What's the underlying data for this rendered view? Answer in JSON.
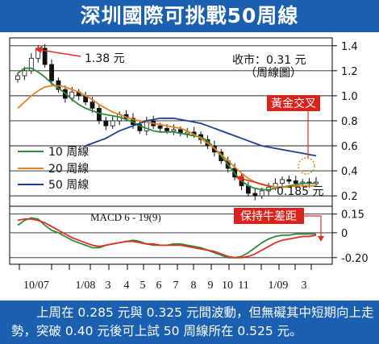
{
  "title": "深圳國際可挑戰50周線",
  "caption": "上周在 0.285 元與 0.325 元間波動，但無礙其中短期向上走勢，突破 0.40 元後可上試 50 周線所在 0.525 元。",
  "chart_data": [
    {
      "type": "line",
      "subtype": "candlestick-with-moving-averages",
      "closing_note": "收市：0.31 元",
      "chart_note": "（周線圖）",
      "y_ticks": [
        0.2,
        0.4,
        0.6,
        0.8,
        1.0,
        1.2,
        1.4
      ],
      "y_tick_labels": [
        "0.2",
        "0.4",
        "0.6",
        "0.8",
        "1.0",
        "1.2",
        "1.4"
      ],
      "ylim": [
        0.13,
        1.45
      ],
      "x_ticks": [
        "10/07",
        "1/08",
        "3",
        "4",
        "5",
        "6",
        "7",
        "8",
        "9",
        "10",
        "11",
        "1/09",
        "3"
      ],
      "annotations": [
        {
          "text": "1.38 元",
          "value": 1.38
        },
        {
          "text": "0.185 元",
          "value": 0.185
        },
        {
          "text": "黃金交叉"
        }
      ],
      "legend": [
        "10 周線",
        "20 周線",
        "50 周線"
      ],
      "legend_position": "lower-left",
      "series": [
        {
          "name": "10 周線",
          "color": "#2e8b3a",
          "values": [
            1.18,
            1.22,
            1.22,
            1.19,
            1.15,
            1.1,
            1.06,
            1.02,
            0.97,
            0.93,
            0.9,
            0.88,
            0.86,
            0.85,
            0.84,
            0.83,
            0.81,
            0.79,
            0.76,
            0.74,
            0.72,
            0.71,
            0.71,
            0.71,
            0.7,
            0.69,
            0.68,
            0.67,
            0.64,
            0.58,
            0.52,
            0.45,
            0.38,
            0.32,
            0.28,
            0.26,
            0.25,
            0.25,
            0.26,
            0.27,
            0.28,
            0.29,
            0.3,
            0.3,
            0.3
          ]
        },
        {
          "name": "20 周線",
          "color": "#e8821e",
          "values": [
            0.9,
            0.95,
            1.0,
            1.04,
            1.07,
            1.08,
            1.08,
            1.07,
            1.05,
            1.03,
            1.0,
            0.97,
            0.93,
            0.9,
            0.87,
            0.85,
            0.83,
            0.81,
            0.8,
            0.79,
            0.78,
            0.77,
            0.76,
            0.75,
            0.74,
            0.72,
            0.69,
            0.66,
            0.62,
            0.58,
            0.53,
            0.48,
            0.43,
            0.38,
            0.34,
            0.31,
            0.29,
            0.28,
            0.27,
            0.27,
            0.27,
            0.28,
            0.28,
            0.28,
            0.28
          ]
        },
        {
          "name": "50 周線",
          "color": "#1f3f8f",
          "values": [
            null,
            null,
            null,
            null,
            null,
            null,
            null,
            null,
            null,
            null,
            0.6,
            0.62,
            0.64,
            0.66,
            0.69,
            0.72,
            0.74,
            0.76,
            0.78,
            0.8,
            0.81,
            0.82,
            0.82,
            0.82,
            0.81,
            0.8,
            0.79,
            0.78,
            0.76,
            0.74,
            0.72,
            0.7,
            0.68,
            0.66,
            0.64,
            0.62,
            0.6,
            0.59,
            0.58,
            0.57,
            0.56,
            0.55,
            0.54,
            0.53,
            0.52
          ]
        },
        {
          "name": "weekly-close",
          "color": "#111111",
          "values": [
            1.16,
            1.2,
            1.3,
            1.38,
            1.25,
            1.12,
            1.05,
            0.98,
            1.03,
            1.0,
            0.95,
            0.9,
            0.8,
            0.76,
            0.8,
            0.85,
            0.82,
            0.77,
            0.72,
            0.8,
            0.76,
            0.74,
            0.72,
            0.73,
            0.7,
            0.71,
            0.69,
            0.65,
            0.6,
            0.55,
            0.48,
            0.42,
            0.35,
            0.28,
            0.22,
            0.2,
            0.24,
            0.27,
            0.3,
            0.33,
            0.32,
            0.3,
            0.31,
            0.3,
            0.31
          ]
        }
      ]
    },
    {
      "type": "line",
      "title": "MACD 6 - 19(9)",
      "y_ticks": [
        0.15,
        0,
        -0.2
      ],
      "y_tick_labels": [
        "0.15",
        "0",
        "-0.20"
      ],
      "ylim": [
        -0.24,
        0.2
      ],
      "annotations": [
        {
          "text": "保持牛差距"
        }
      ],
      "series": [
        {
          "name": "MACD",
          "color": "#2e8b3a",
          "values": [
            0.06,
            0.1,
            0.12,
            0.11,
            0.06,
            0.02,
            0.0,
            -0.03,
            -0.06,
            -0.08,
            -0.1,
            -0.12,
            -0.12,
            -0.1,
            -0.09,
            -0.08,
            -0.07,
            -0.06,
            -0.07,
            -0.09,
            -0.1,
            -0.1,
            -0.1,
            -0.09,
            -0.09,
            -0.1,
            -0.11,
            -0.12,
            -0.14,
            -0.16,
            -0.18,
            -0.2,
            -0.2,
            -0.19,
            -0.16,
            -0.12,
            -0.08,
            -0.05,
            -0.03,
            -0.02,
            -0.02,
            -0.01,
            -0.01,
            -0.01,
            -0.01
          ]
        },
        {
          "name": "Signal",
          "color": "#e03020",
          "values": [
            0.1,
            0.11,
            0.11,
            0.1,
            0.08,
            0.05,
            0.02,
            -0.01,
            -0.04,
            -0.06,
            -0.08,
            -0.1,
            -0.11,
            -0.1,
            -0.09,
            -0.08,
            -0.07,
            -0.07,
            -0.08,
            -0.09,
            -0.09,
            -0.1,
            -0.1,
            -0.1,
            -0.1,
            -0.11,
            -0.12,
            -0.13,
            -0.14,
            -0.15,
            -0.17,
            -0.19,
            -0.2,
            -0.2,
            -0.19,
            -0.17,
            -0.14,
            -0.11,
            -0.08,
            -0.06,
            -0.05,
            -0.04,
            -0.03,
            -0.03,
            -0.02
          ]
        }
      ]
    }
  ]
}
